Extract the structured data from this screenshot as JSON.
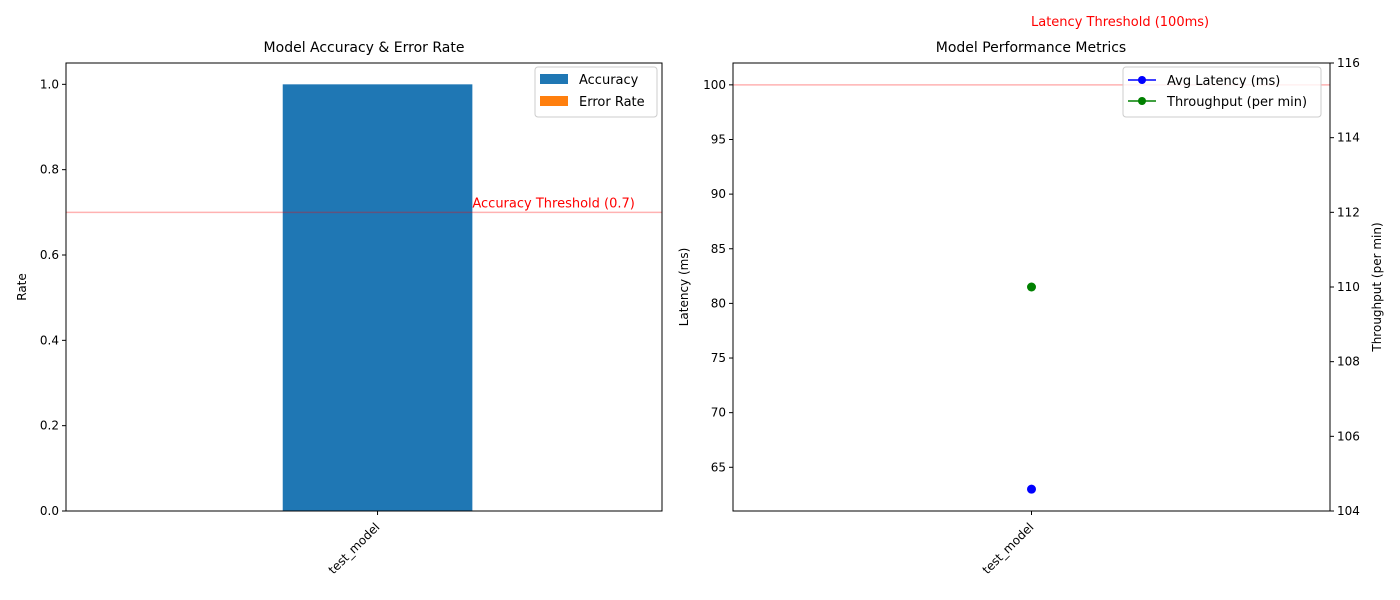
{
  "chart_data": [
    {
      "type": "bar",
      "title": "Model Accuracy & Error Rate",
      "xlabel": "",
      "ylabel": "Rate",
      "categories": [
        "test_model"
      ],
      "ylim": [
        0,
        1.05
      ],
      "yticks": [
        "0.0",
        "0.2",
        "0.4",
        "0.6",
        "0.8",
        "1.0"
      ],
      "series": [
        {
          "name": "Accuracy",
          "values": [
            1.0
          ],
          "color": "#1f77b4"
        },
        {
          "name": "Error Rate",
          "values": [
            0.0
          ],
          "color": "#ff7f0e"
        }
      ],
      "threshold": {
        "value": 0.7,
        "label": "Accuracy Threshold (0.7)",
        "color": "#ff0000"
      },
      "legend": "top-right",
      "grid": false
    },
    {
      "type": "line",
      "title": "Model Performance Metrics",
      "xlabel": "",
      "ylabel": "Latency (ms)",
      "y2label": "Throughput (per min)",
      "categories": [
        "test_model"
      ],
      "ylim": [
        61,
        102
      ],
      "y2lim": [
        104,
        116
      ],
      "yticks": [
        "65",
        "70",
        "75",
        "80",
        "85",
        "90",
        "95",
        "100"
      ],
      "y2ticks": [
        "104",
        "106",
        "108",
        "110",
        "112",
        "114",
        "116"
      ],
      "series": [
        {
          "name": "Avg Latency (ms)",
          "values": [
            63
          ],
          "color": "#0000ff",
          "axis": "left"
        },
        {
          "name": "Throughput (per min)",
          "values": [
            110
          ],
          "color": "#008000",
          "axis": "right"
        }
      ],
      "threshold": {
        "value": 100,
        "label": "Latency Threshold (100ms)",
        "color": "#ff0000"
      },
      "legend": "top-right",
      "grid": false
    }
  ]
}
